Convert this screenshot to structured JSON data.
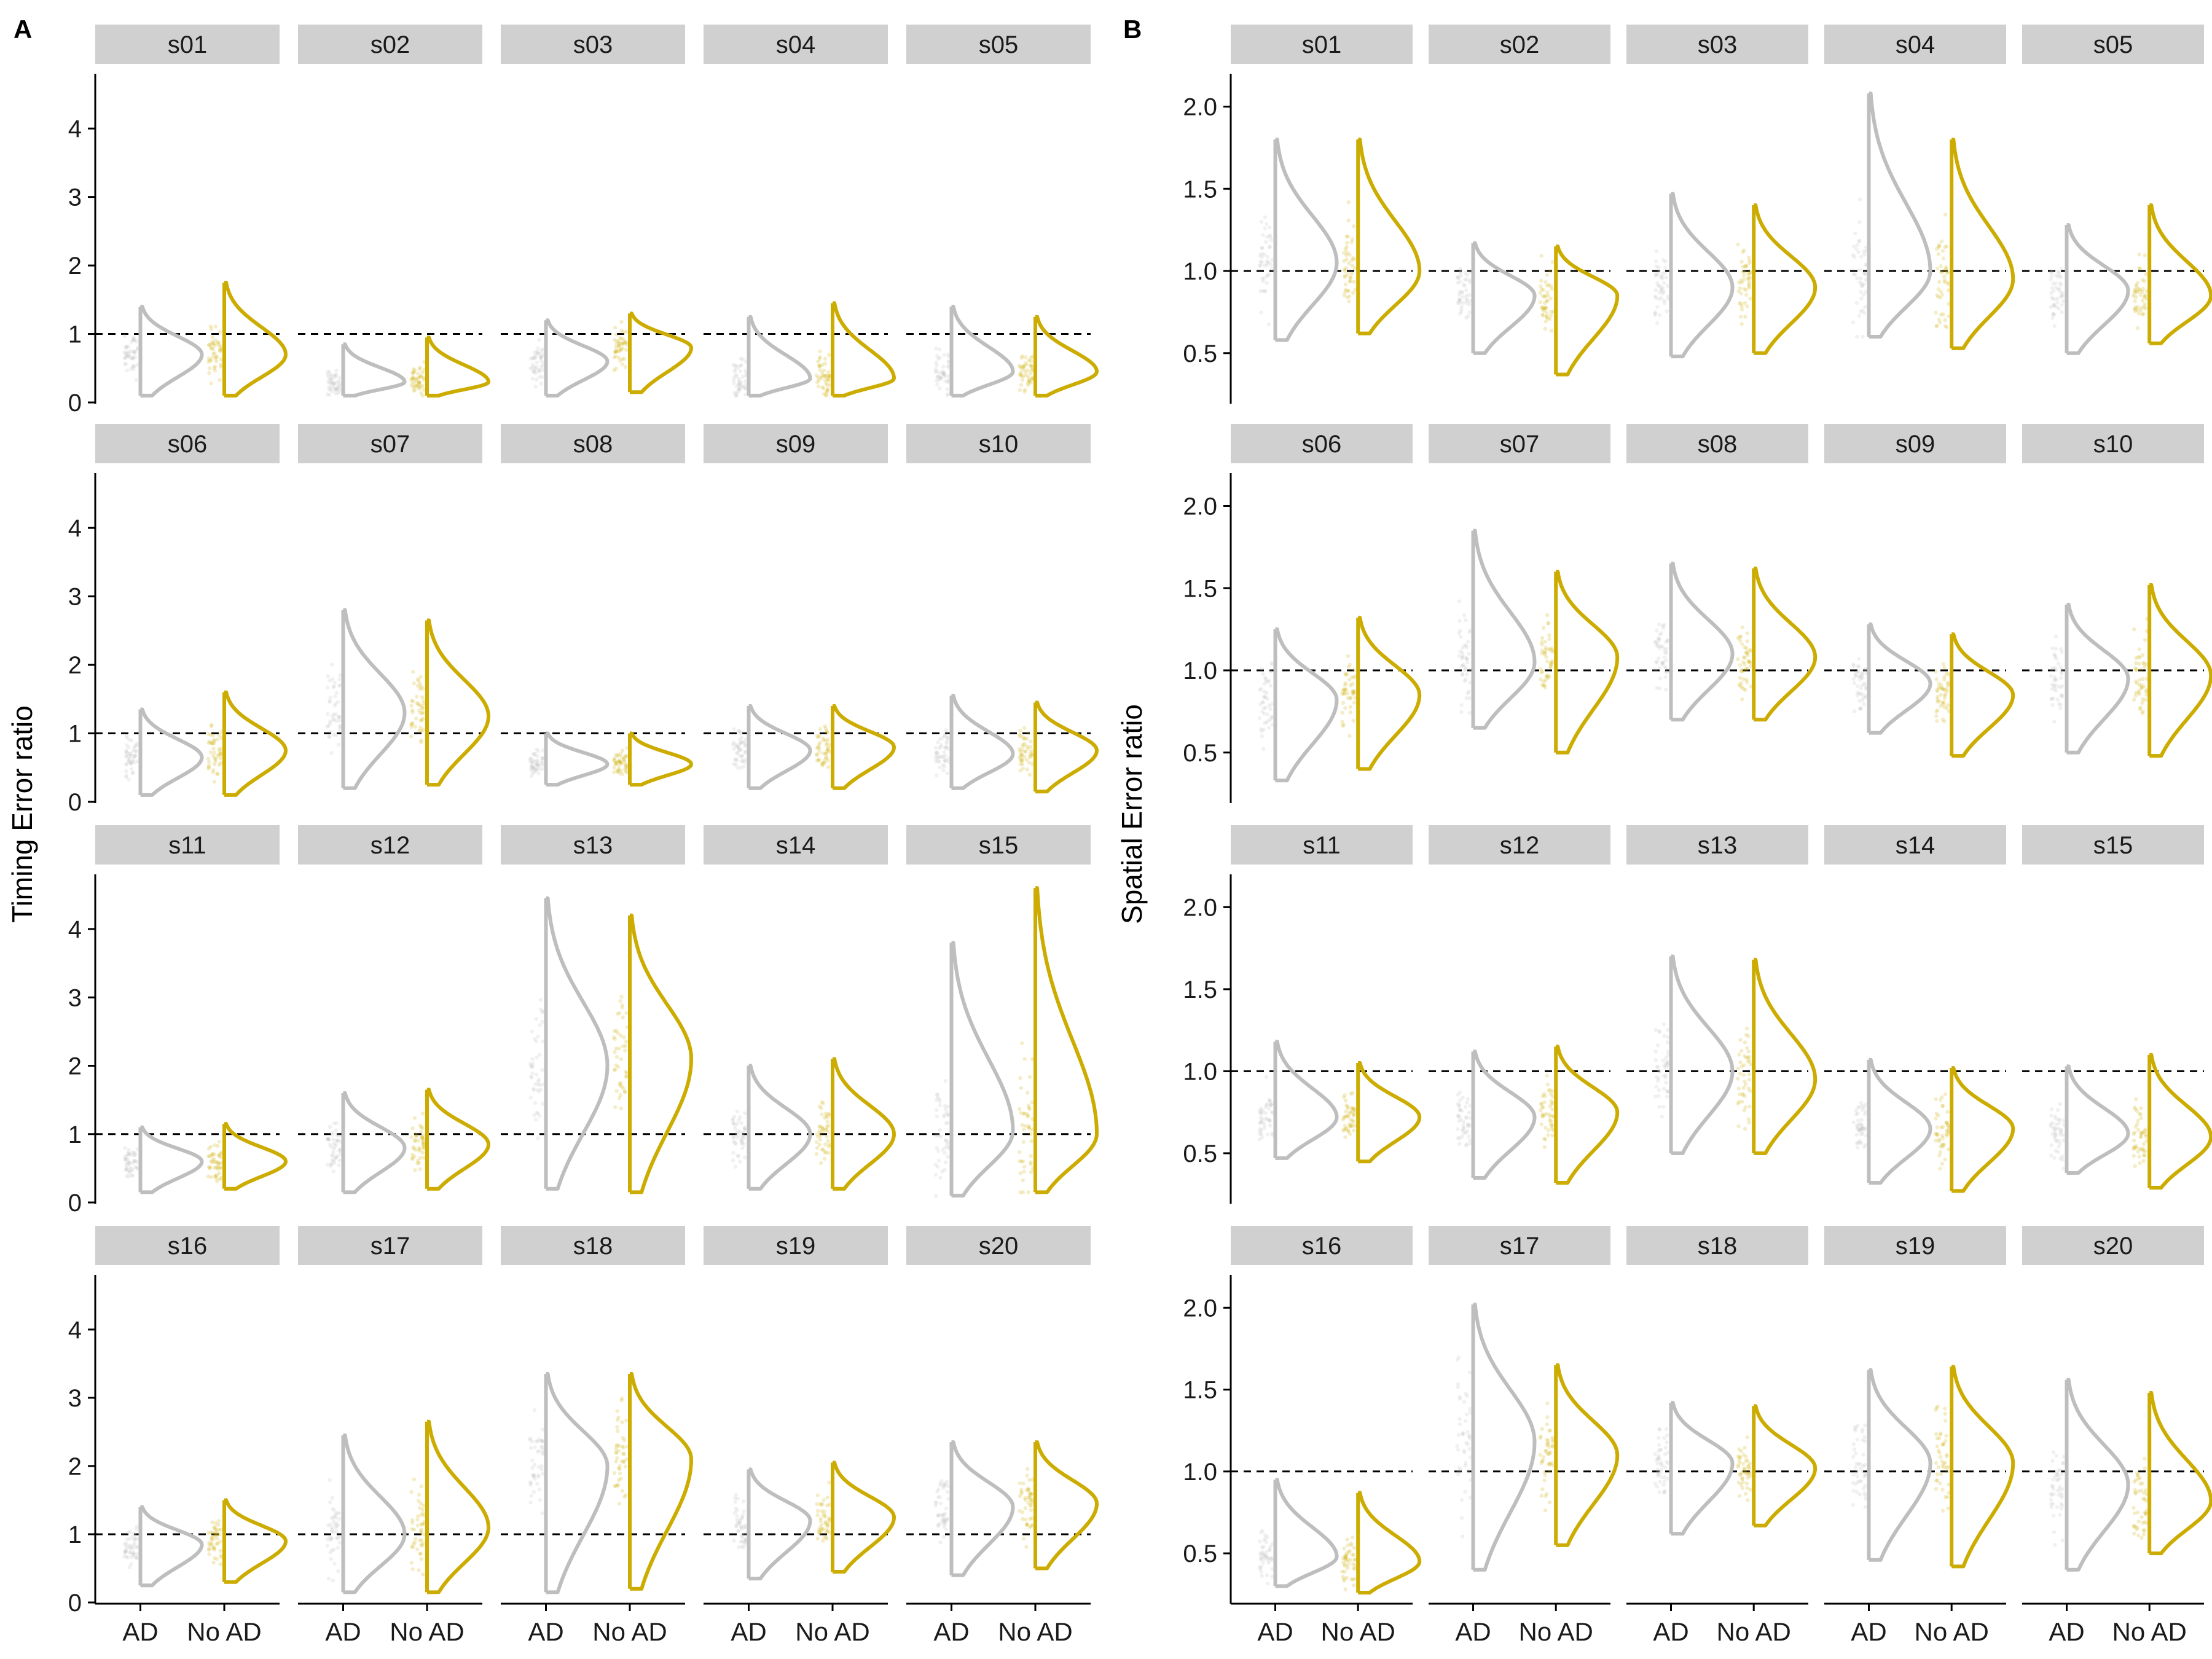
{
  "figure": {
    "colors": {
      "AD": "#bebebe",
      "No AD": "#ccac00",
      "strip": "#d0d0d0",
      "axis": "#000000",
      "reference": "#000000"
    },
    "strip_color": "#d0d0d0"
  },
  "chart_data": [
    {
      "type": "violin",
      "panel_label": "A",
      "ylabel": "Timing Error ratio",
      "ylim": [
        0,
        4.8
      ],
      "yticks": [
        0,
        1,
        2,
        3,
        4
      ],
      "reference_line": 1,
      "categories": [
        "AD",
        "No AD"
      ],
      "facets": [
        {
          "label": "s01",
          "AD": {
            "min": 0.1,
            "max": 1.4,
            "mode": 0.7
          },
          "No AD": {
            "min": 0.1,
            "max": 1.75,
            "mode": 0.7
          }
        },
        {
          "label": "s02",
          "AD": {
            "min": 0.1,
            "max": 0.85,
            "mode": 0.3
          },
          "No AD": {
            "min": 0.1,
            "max": 0.95,
            "mode": 0.3
          }
        },
        {
          "label": "s03",
          "AD": {
            "min": 0.1,
            "max": 1.2,
            "mode": 0.6
          },
          "No AD": {
            "min": 0.15,
            "max": 1.3,
            "mode": 0.8
          }
        },
        {
          "label": "s04",
          "AD": {
            "min": 0.1,
            "max": 1.25,
            "mode": 0.35
          },
          "No AD": {
            "min": 0.1,
            "max": 1.45,
            "mode": 0.35
          }
        },
        {
          "label": "s05",
          "AD": {
            "min": 0.1,
            "max": 1.4,
            "mode": 0.45
          },
          "No AD": {
            "min": 0.1,
            "max": 1.25,
            "mode": 0.45
          }
        },
        {
          "label": "s06",
          "AD": {
            "min": 0.1,
            "max": 1.35,
            "mode": 0.65
          },
          "No AD": {
            "min": 0.1,
            "max": 1.6,
            "mode": 0.75
          }
        },
        {
          "label": "s07",
          "AD": {
            "min": 0.2,
            "max": 2.8,
            "mode": 1.3
          },
          "No AD": {
            "min": 0.25,
            "max": 2.65,
            "mode": 1.25
          }
        },
        {
          "label": "s08",
          "AD": {
            "min": 0.25,
            "max": 1.0,
            "mode": 0.55
          },
          "No AD": {
            "min": 0.25,
            "max": 1.0,
            "mode": 0.55
          }
        },
        {
          "label": "s09",
          "AD": {
            "min": 0.2,
            "max": 1.4,
            "mode": 0.75
          },
          "No AD": {
            "min": 0.2,
            "max": 1.4,
            "mode": 0.8
          }
        },
        {
          "label": "s10",
          "AD": {
            "min": 0.2,
            "max": 1.55,
            "mode": 0.7
          },
          "No AD": {
            "min": 0.15,
            "max": 1.45,
            "mode": 0.75
          }
        },
        {
          "label": "s11",
          "AD": {
            "min": 0.15,
            "max": 1.1,
            "mode": 0.6
          },
          "No AD": {
            "min": 0.2,
            "max": 1.15,
            "mode": 0.6
          }
        },
        {
          "label": "s12",
          "AD": {
            "min": 0.15,
            "max": 1.6,
            "mode": 0.8
          },
          "No AD": {
            "min": 0.2,
            "max": 1.65,
            "mode": 0.85
          }
        },
        {
          "label": "s13",
          "AD": {
            "min": 0.2,
            "max": 4.45,
            "mode": 2.0
          },
          "No AD": {
            "min": 0.15,
            "max": 4.2,
            "mode": 2.1
          }
        },
        {
          "label": "s14",
          "AD": {
            "min": 0.2,
            "max": 2.0,
            "mode": 1.0
          },
          "No AD": {
            "min": 0.2,
            "max": 2.1,
            "mode": 1.0
          }
        },
        {
          "label": "s15",
          "AD": {
            "min": 0.1,
            "max": 3.8,
            "mode": 1.05
          },
          "No AD": {
            "min": 0.15,
            "max": 4.6,
            "mode": 1.0
          }
        },
        {
          "label": "s16",
          "AD": {
            "min": 0.25,
            "max": 1.4,
            "mode": 0.85
          },
          "No AD": {
            "min": 0.3,
            "max": 1.5,
            "mode": 0.9
          }
        },
        {
          "label": "s17",
          "AD": {
            "min": 0.15,
            "max": 2.45,
            "mode": 1.0
          },
          "No AD": {
            "min": 0.15,
            "max": 2.65,
            "mode": 1.1
          }
        },
        {
          "label": "s18",
          "AD": {
            "min": 0.15,
            "max": 3.35,
            "mode": 2.0
          },
          "No AD": {
            "min": 0.2,
            "max": 3.35,
            "mode": 2.1
          }
        },
        {
          "label": "s19",
          "AD": {
            "min": 0.35,
            "max": 1.95,
            "mode": 1.2
          },
          "No AD": {
            "min": 0.45,
            "max": 2.05,
            "mode": 1.25
          }
        },
        {
          "label": "s20",
          "AD": {
            "min": 0.4,
            "max": 2.35,
            "mode": 1.4
          },
          "No AD": {
            "min": 0.5,
            "max": 2.35,
            "mode": 1.45
          }
        }
      ]
    },
    {
      "type": "violin",
      "panel_label": "B",
      "ylabel": "Spatial Error ratio",
      "ylim": [
        0.2,
        2.2
      ],
      "yticks": [
        0.5,
        1.0,
        1.5,
        2.0
      ],
      "ytick_labels": [
        "0.5",
        "1.0",
        "1.5",
        "2.0"
      ],
      "reference_line": 1,
      "categories": [
        "AD",
        "No AD"
      ],
      "facets": [
        {
          "label": "s01",
          "AD": {
            "min": 0.58,
            "max": 1.8,
            "mode": 1.05
          },
          "No AD": {
            "min": 0.62,
            "max": 1.8,
            "mode": 1.0
          }
        },
        {
          "label": "s02",
          "AD": {
            "min": 0.5,
            "max": 1.17,
            "mode": 0.85
          },
          "No AD": {
            "min": 0.37,
            "max": 1.15,
            "mode": 0.85
          }
        },
        {
          "label": "s03",
          "AD": {
            "min": 0.48,
            "max": 1.47,
            "mode": 0.9
          },
          "No AD": {
            "min": 0.5,
            "max": 1.4,
            "mode": 0.9
          }
        },
        {
          "label": "s04",
          "AD": {
            "min": 0.6,
            "max": 2.08,
            "mode": 1.0
          },
          "No AD": {
            "min": 0.53,
            "max": 1.8,
            "mode": 0.95
          }
        },
        {
          "label": "s05",
          "AD": {
            "min": 0.5,
            "max": 1.28,
            "mode": 0.88
          },
          "No AD": {
            "min": 0.56,
            "max": 1.4,
            "mode": 0.85
          }
        },
        {
          "label": "s06",
          "AD": {
            "min": 0.33,
            "max": 1.25,
            "mode": 0.82
          },
          "No AD": {
            "min": 0.4,
            "max": 1.32,
            "mode": 0.85
          }
        },
        {
          "label": "s07",
          "AD": {
            "min": 0.65,
            "max": 1.85,
            "mode": 1.05
          },
          "No AD": {
            "min": 0.5,
            "max": 1.6,
            "mode": 1.08
          }
        },
        {
          "label": "s08",
          "AD": {
            "min": 0.7,
            "max": 1.65,
            "mode": 1.1
          },
          "No AD": {
            "min": 0.7,
            "max": 1.62,
            "mode": 1.08
          }
        },
        {
          "label": "s09",
          "AD": {
            "min": 0.62,
            "max": 1.28,
            "mode": 0.92
          },
          "No AD": {
            "min": 0.48,
            "max": 1.22,
            "mode": 0.85
          }
        },
        {
          "label": "s10",
          "AD": {
            "min": 0.5,
            "max": 1.4,
            "mode": 0.95
          },
          "No AD": {
            "min": 0.48,
            "max": 1.52,
            "mode": 0.97
          }
        },
        {
          "label": "s11",
          "AD": {
            "min": 0.47,
            "max": 1.18,
            "mode": 0.72
          },
          "No AD": {
            "min": 0.45,
            "max": 1.05,
            "mode": 0.72
          }
        },
        {
          "label": "s12",
          "AD": {
            "min": 0.35,
            "max": 1.12,
            "mode": 0.72
          },
          "No AD": {
            "min": 0.32,
            "max": 1.15,
            "mode": 0.75
          }
        },
        {
          "label": "s13",
          "AD": {
            "min": 0.5,
            "max": 1.7,
            "mode": 1.0
          },
          "No AD": {
            "min": 0.5,
            "max": 1.68,
            "mode": 0.95
          }
        },
        {
          "label": "s14",
          "AD": {
            "min": 0.32,
            "max": 1.07,
            "mode": 0.65
          },
          "No AD": {
            "min": 0.27,
            "max": 1.02,
            "mode": 0.65
          }
        },
        {
          "label": "s15",
          "AD": {
            "min": 0.38,
            "max": 1.03,
            "mode": 0.62
          },
          "No AD": {
            "min": 0.29,
            "max": 1.1,
            "mode": 0.6
          }
        },
        {
          "label": "s16",
          "AD": {
            "min": 0.3,
            "max": 0.95,
            "mode": 0.48
          },
          "No AD": {
            "min": 0.26,
            "max": 0.87,
            "mode": 0.45
          }
        },
        {
          "label": "s17",
          "AD": {
            "min": 0.4,
            "max": 2.02,
            "mode": 1.18
          },
          "No AD": {
            "min": 0.55,
            "max": 1.65,
            "mode": 1.1
          }
        },
        {
          "label": "s18",
          "AD": {
            "min": 0.62,
            "max": 1.42,
            "mode": 1.05
          },
          "No AD": {
            "min": 0.67,
            "max": 1.4,
            "mode": 1.02
          }
        },
        {
          "label": "s19",
          "AD": {
            "min": 0.46,
            "max": 1.62,
            "mode": 1.05
          },
          "No AD": {
            "min": 0.42,
            "max": 1.64,
            "mode": 1.05
          }
        },
        {
          "label": "s20",
          "AD": {
            "min": 0.4,
            "max": 1.56,
            "mode": 0.92
          },
          "No AD": {
            "min": 0.5,
            "max": 1.48,
            "mode": 0.82
          }
        }
      ]
    }
  ]
}
